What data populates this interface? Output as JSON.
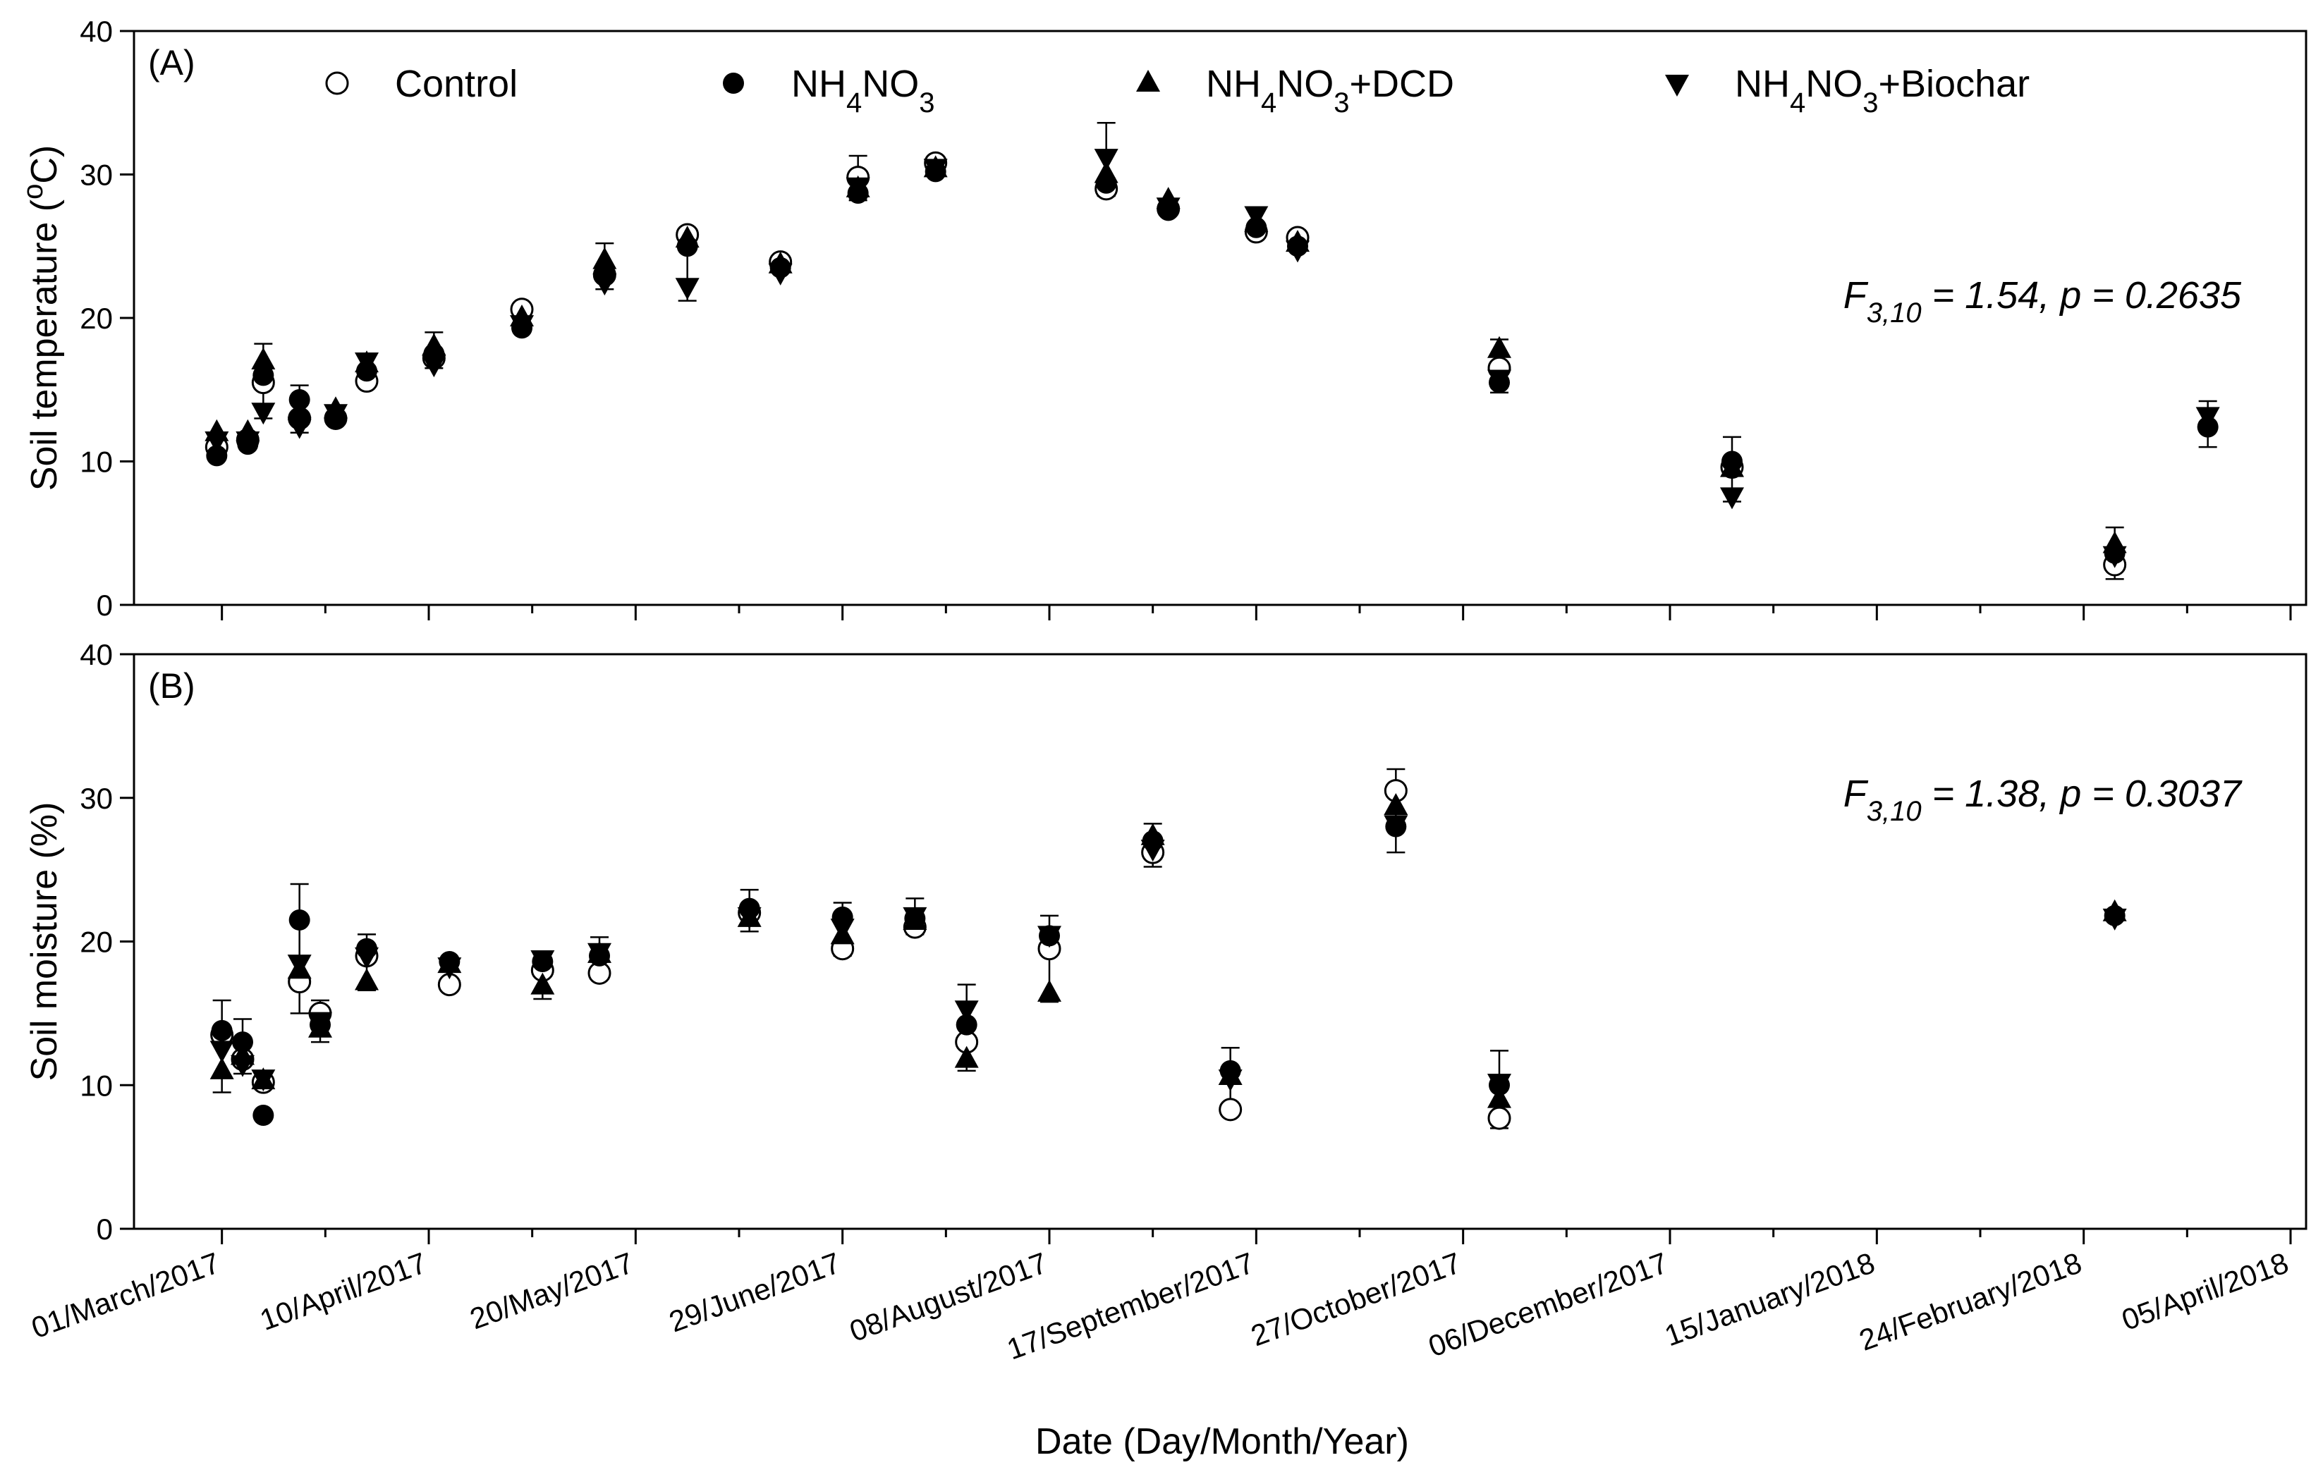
{
  "chart_data": {
    "type": "scatter",
    "x_axis": {
      "title": "Date (Day/Month/Year)",
      "tick_labels": [
        "01/March/2017",
        "10/April/2017",
        "20/May/2017",
        "29/June/2017",
        "08/August/2017",
        "17/September/2017",
        "27/October/2017",
        "06/December/2017",
        "15/January/2018",
        "24/February/2018",
        "05/April/2018"
      ],
      "tick_days": [
        0,
        40,
        80,
        120,
        160,
        200,
        240,
        280,
        320,
        360,
        400
      ],
      "range_days": [
        -17,
        403
      ]
    },
    "legend": [
      {
        "key": "control",
        "base": "Control",
        "sub1": "",
        "mid": "",
        "sub2": "",
        "tail": "",
        "marker": "circle-open"
      },
      {
        "key": "nh4no3",
        "base": "NH",
        "sub1": "4",
        "mid": "NO",
        "sub2": "3",
        "tail": "",
        "marker": "circle-filled"
      },
      {
        "key": "dcd",
        "base": "NH",
        "sub1": "4",
        "mid": "NO",
        "sub2": "3",
        "tail": "+DCD",
        "marker": "triangle-up"
      },
      {
        "key": "biochar",
        "base": "NH",
        "sub1": "4",
        "mid": "NO",
        "sub2": "3",
        "tail": "+Biochar",
        "marker": "triangle-down"
      }
    ],
    "panels": [
      {
        "label": "(A)",
        "ylabel_pre": "Soil temperature (",
        "ylabel_sup": "o",
        "ylabel_post": "C)",
        "ylim": [
          0,
          40
        ],
        "yticks": [
          0,
          10,
          20,
          30,
          40
        ],
        "stat": {
          "F": "F",
          "sub": "3,10",
          "rest": " = 1.54, p = 0.2635"
        },
        "days": [
          -1,
          5,
          8,
          15,
          22,
          28,
          41,
          58,
          74,
          90,
          108,
          123,
          138,
          171,
          183,
          200,
          208,
          247,
          292,
          366
        ],
        "series": {
          "control": [
            11.0,
            11.5,
            15.5,
            13.0,
            13.0,
            15.6,
            17.2,
            20.6,
            23.0,
            25.8,
            23.9,
            29.8,
            30.8,
            29.0,
            27.6,
            26.0,
            25.6,
            16.5,
            9.6,
            2.8
          ],
          "nh4no3": [
            10.4,
            11.2,
            16.0,
            14.3,
            13.0,
            16.3,
            17.5,
            19.3,
            23.0,
            25.0,
            23.5,
            28.7,
            30.2,
            29.4,
            27.5,
            26.3,
            25.0,
            15.5,
            10.0,
            3.6
          ],
          "dcd": [
            12.0,
            12.0,
            17.0,
            13.5,
            13.6,
            16.8,
            18.0,
            20.0,
            24.0,
            25.5,
            23.7,
            29.0,
            30.4,
            30.0,
            28.2,
            26.6,
            25.2,
            17.8,
            9.5,
            4.2
          ],
          "biochar": [
            11.5,
            11.5,
            13.5,
            12.5,
            13.4,
            17.0,
            16.8,
            19.6,
            22.5,
            22.2,
            23.2,
            29.2,
            30.5,
            31.2,
            27.8,
            27.2,
            24.8,
            15.8,
            7.6,
            3.5
          ]
        },
        "extra_points": [
          {
            "day": 384,
            "series": "nh4no3",
            "value": 12.4
          },
          {
            "day": 384,
            "series": "biochar",
            "value": 13.2
          }
        ],
        "error_bars": [
          {
            "day": 8,
            "lo": 13.0,
            "hi": 18.2
          },
          {
            "day": 15,
            "lo": 12.0,
            "hi": 15.3
          },
          {
            "day": 28,
            "lo": 15.2,
            "hi": 17.5
          },
          {
            "day": 41,
            "lo": 16.5,
            "hi": 19.0
          },
          {
            "day": 58,
            "lo": 19.0,
            "hi": 21.0
          },
          {
            "day": 74,
            "lo": 22.0,
            "hi": 25.2
          },
          {
            "day": 90,
            "lo": 21.2,
            "hi": 26.0
          },
          {
            "day": 123,
            "lo": 28.2,
            "hi": 31.3
          },
          {
            "day": 171,
            "lo": 28.5,
            "hi": 33.6
          },
          {
            "day": 247,
            "lo": 14.8,
            "hi": 18.5
          },
          {
            "day": 292,
            "lo": 7.2,
            "hi": 11.7
          },
          {
            "day": 366,
            "lo": 1.8,
            "hi": 5.4
          },
          {
            "day": 384,
            "lo": 11.0,
            "hi": 14.2
          }
        ]
      },
      {
        "label": "(B)",
        "ylabel_pre": "Soil moisture (%)",
        "ylabel_sup": "",
        "ylabel_post": "",
        "ylim": [
          0,
          40
        ],
        "yticks": [
          0,
          10,
          20,
          30,
          40
        ],
        "stat": {
          "F": "F",
          "sub": "3,10",
          "rest": " = 1.38, p = 0.3037"
        },
        "days": [
          0,
          4,
          8,
          15,
          19,
          28,
          44,
          62,
          73,
          102,
          120,
          134,
          144,
          160,
          180,
          195,
          227
        ],
        "series": {
          "control": [
            13.5,
            11.8,
            10.2,
            17.2,
            15.0,
            19.0,
            17.0,
            18.0,
            17.8,
            22.0,
            19.5,
            21.0,
            13.0,
            19.5,
            26.2,
            8.3,
            30.5
          ],
          "nh4no3": [
            13.8,
            13.0,
            7.9,
            21.5,
            14.2,
            19.5,
            18.6,
            18.6,
            19.0,
            22.3,
            21.7,
            21.6,
            14.2,
            20.4,
            27.0,
            11.0,
            28.0
          ],
          "dcd": [
            11.0,
            12.0,
            10.3,
            18.0,
            13.9,
            17.2,
            18.4,
            16.9,
            19.1,
            21.6,
            20.4,
            21.4,
            11.8,
            16.4,
            27.3,
            10.6,
            29.4
          ],
          "biochar": [
            12.5,
            11.5,
            10.5,
            18.5,
            14.5,
            19.0,
            18.3,
            18.8,
            19.3,
            21.8,
            21.0,
            21.8,
            15.3,
            20.5,
            26.5,
            10.5,
            28.2
          ]
        },
        "extra_points": [
          {
            "day": 247,
            "series": "control",
            "value": 7.7
          },
          {
            "day": 247,
            "series": "nh4no3",
            "value": 10.0
          },
          {
            "day": 247,
            "series": "dcd",
            "value": 9.0
          },
          {
            "day": 247,
            "series": "biochar",
            "value": 10.2
          },
          {
            "day": 366,
            "series": "nh4no3",
            "value": 21.8
          },
          {
            "day": 366,
            "series": "dcd",
            "value": 22.0
          },
          {
            "day": 366,
            "series": "biochar",
            "value": 21.7
          }
        ],
        "error_bars": [
          {
            "day": 0,
            "lo": 9.5,
            "hi": 15.9
          },
          {
            "day": 4,
            "lo": 10.8,
            "hi": 14.6
          },
          {
            "day": 15,
            "lo": 15.0,
            "hi": 24.0
          },
          {
            "day": 19,
            "lo": 13.0,
            "hi": 15.9
          },
          {
            "day": 28,
            "lo": 16.6,
            "hi": 20.5
          },
          {
            "day": 62,
            "lo": 16.0,
            "hi": 19.3
          },
          {
            "day": 73,
            "lo": 17.5,
            "hi": 20.3
          },
          {
            "day": 102,
            "lo": 20.7,
            "hi": 23.6
          },
          {
            "day": 120,
            "lo": 19.0,
            "hi": 22.7
          },
          {
            "day": 134,
            "lo": 20.5,
            "hi": 23.0
          },
          {
            "day": 144,
            "lo": 11.0,
            "hi": 17.0
          },
          {
            "day": 160,
            "lo": 15.8,
            "hi": 21.8
          },
          {
            "day": 180,
            "lo": 25.2,
            "hi": 28.2
          },
          {
            "day": 195,
            "lo": 8.0,
            "hi": 12.6
          },
          {
            "day": 227,
            "lo": 26.2,
            "hi": 32.0
          },
          {
            "day": 247,
            "lo": 7.0,
            "hi": 12.4
          }
        ]
      }
    ]
  }
}
